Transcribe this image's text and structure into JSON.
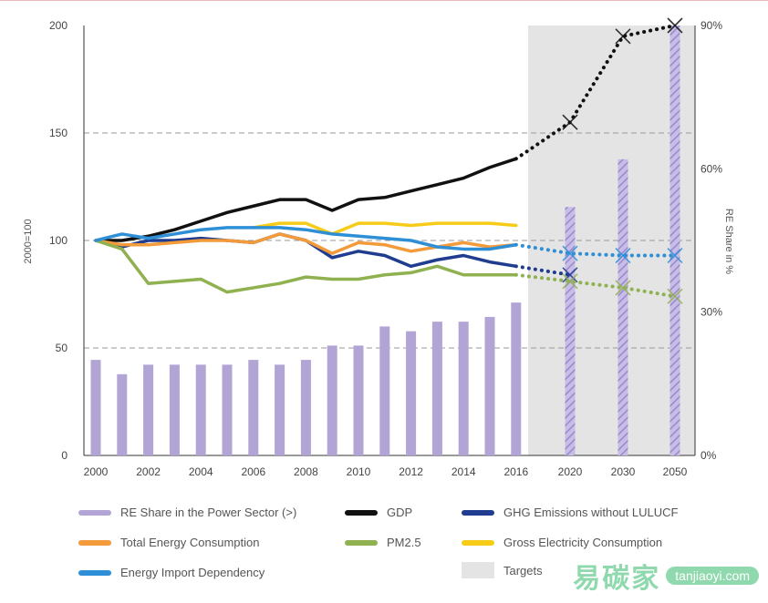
{
  "chart_data": {
    "type": "line",
    "ylabel": "2000=100",
    "y2label": "RE Share in %",
    "ylim": [
      0,
      200
    ],
    "y2lim": [
      0,
      90
    ],
    "yticks": [
      "0",
      "50",
      "100",
      "150",
      "200"
    ],
    "y2ticks": [
      "0%",
      "30%",
      "60%",
      "90%"
    ],
    "x_categories": [
      "2000",
      "2001",
      "2002",
      "2003",
      "2004",
      "2005",
      "2006",
      "2007",
      "2008",
      "2009",
      "2010",
      "2011",
      "2012",
      "2013",
      "2014",
      "2015",
      "2016",
      "2020",
      "2030",
      "2050"
    ],
    "xtick_labels": [
      "2000",
      "2002",
      "2004",
      "2006",
      "2008",
      "2010",
      "2012",
      "2014",
      "2016",
      "2020",
      "2030",
      "2050"
    ],
    "targets_label": "Targets",
    "bars": {
      "name": "RE Share in the Power Sector (>)",
      "color": "#b3a4d6",
      "years": [
        "2000",
        "2001",
        "2002",
        "2003",
        "2004",
        "2005",
        "2006",
        "2007",
        "2008",
        "2009",
        "2010",
        "2011",
        "2012",
        "2013",
        "2014",
        "2015",
        "2016"
      ],
      "values": [
        20,
        17,
        19,
        19,
        19,
        19,
        20,
        19,
        20,
        23,
        23,
        27,
        26,
        28,
        28,
        29,
        32
      ]
    },
    "bar_targets": {
      "years": [
        "2020",
        "2030",
        "2050"
      ],
      "values": [
        52,
        62,
        90
      ]
    },
    "series": [
      {
        "name": "GDP",
        "color": "#111111",
        "years": [
          "2000",
          "2001",
          "2002",
          "2003",
          "2004",
          "2005",
          "2006",
          "2007",
          "2008",
          "2009",
          "2010",
          "2011",
          "2012",
          "2013",
          "2014",
          "2015",
          "2016"
        ],
        "values": [
          100,
          100,
          102,
          105,
          109,
          113,
          116,
          119,
          119,
          114,
          119,
          120,
          123,
          126,
          129,
          134,
          138
        ],
        "targets": {
          "years": [
            "2016",
            "2020",
            "2030",
            "2050"
          ],
          "values": [
            138,
            155,
            195,
            200
          ]
        }
      },
      {
        "name": "GHG Emissions without LULUCF",
        "color": "#1f3c8f",
        "years": [
          "2000",
          "2001",
          "2002",
          "2003",
          "2004",
          "2005",
          "2006",
          "2007",
          "2008",
          "2009",
          "2010",
          "2011",
          "2012",
          "2013",
          "2014",
          "2015",
          "2016"
        ],
        "values": [
          100,
          97,
          100,
          100,
          101,
          100,
          99,
          103,
          100,
          92,
          95,
          93,
          88,
          91,
          93,
          90,
          88
        ],
        "targets": {
          "years": [
            "2016",
            "2020"
          ],
          "values": [
            88,
            84
          ]
        }
      },
      {
        "name": "Total Energy Consumption",
        "color": "#f39a3a",
        "years": [
          "2000",
          "2001",
          "2002",
          "2003",
          "2004",
          "2005",
          "2006",
          "2007",
          "2008",
          "2009",
          "2010",
          "2011",
          "2012",
          "2013",
          "2014",
          "2015",
          "2016"
        ],
        "values": [
          100,
          98,
          98,
          99,
          100,
          100,
          99,
          103,
          100,
          94,
          99,
          98,
          95,
          97,
          99,
          97,
          98
        ]
      },
      {
        "name": "PM2.5",
        "color": "#8fb14f",
        "years": [
          "2000",
          "2001",
          "2002",
          "2003",
          "2004",
          "2005",
          "2006",
          "2007",
          "2008",
          "2009",
          "2010",
          "2011",
          "2012",
          "2013",
          "2014",
          "2015",
          "2016"
        ],
        "values": [
          100,
          96,
          80,
          81,
          82,
          76,
          78,
          80,
          83,
          82,
          82,
          84,
          85,
          88,
          84,
          84,
          84
        ],
        "targets": {
          "years": [
            "2016",
            "2020",
            "2030",
            "2050"
          ],
          "values": [
            84,
            81,
            78,
            74
          ]
        }
      },
      {
        "name": "Gross Electricity Consumption",
        "color": "#f7cc18",
        "years": [
          "2006",
          "2007",
          "2008",
          "2009",
          "2010",
          "2011",
          "2012",
          "2013",
          "2014",
          "2015",
          "2016"
        ],
        "values": [
          106,
          108,
          108,
          103,
          108,
          108,
          107,
          108,
          108,
          108,
          107
        ]
      },
      {
        "name": "Energy Import Dependency",
        "color": "#2f8fd6",
        "years": [
          "2000",
          "2001",
          "2002",
          "2003",
          "2004",
          "2005",
          "2006",
          "2007",
          "2008",
          "2009",
          "2010",
          "2011",
          "2012",
          "2013",
          "2014",
          "2015",
          "2016"
        ],
        "values": [
          100,
          103,
          101,
          103,
          105,
          106,
          106,
          106,
          105,
          103,
          102,
          101,
          100,
          97,
          96,
          96,
          98
        ],
        "targets": {
          "years": [
            "2016",
            "2020",
            "2030",
            "2050"
          ],
          "values": [
            98,
            94,
            93,
            93
          ]
        }
      }
    ]
  },
  "legend": [
    {
      "label": "RE Share in the Power Sector (>)",
      "color": "#b3a4d6",
      "kind": "line"
    },
    {
      "label": "GDP",
      "color": "#111111",
      "kind": "line"
    },
    {
      "label": "GHG Emissions without LULUCF",
      "color": "#1f3c8f",
      "kind": "line"
    },
    {
      "label": "Total Energy Consumption",
      "color": "#f39a3a",
      "kind": "line"
    },
    {
      "label": "PM2.5",
      "color": "#8fb14f",
      "kind": "line"
    },
    {
      "label": "Gross Electricity Consumption",
      "color": "#f7cc18",
      "kind": "line"
    },
    {
      "label": "Energy Import Dependency",
      "color": "#2f8fd6",
      "kind": "line"
    },
    {
      "label": "Targets",
      "color": "#e4e4e4",
      "kind": "box"
    }
  ],
  "watermark": {
    "mark": "易碳家",
    "site": "tanjiaoyi.com"
  }
}
